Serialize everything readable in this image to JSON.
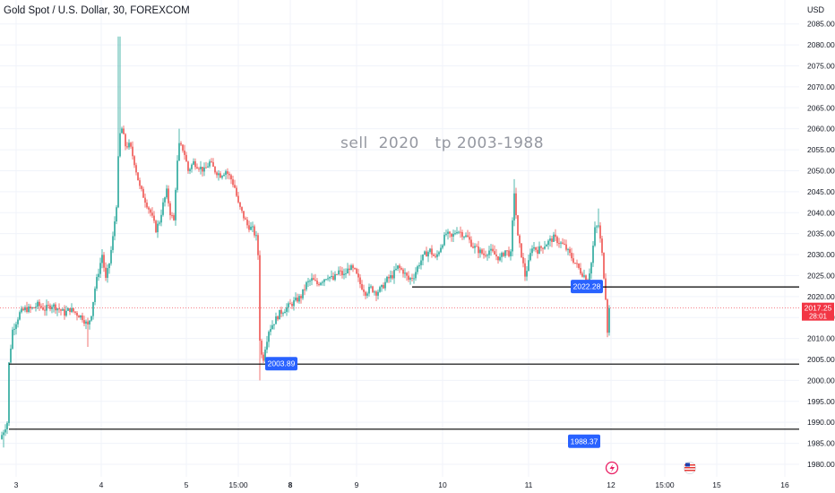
{
  "header": {
    "symbol_title": "Gold Spot / U.S. Dollar, 30, FOREXCOM",
    "currency": "USD"
  },
  "annotation": "sell  2020   tp 2003-1988",
  "colors": {
    "up": "#26a69a",
    "down": "#ef5350",
    "level_line": "#000000",
    "label_bg": "#2962ff",
    "last_price_bg": "#f23645",
    "grid": "#f0f3fa"
  },
  "chart_data": {
    "type": "candlestick",
    "title": "",
    "ylim": [
      1977,
      2089
    ],
    "y_ticks": [
      "1980.00",
      "1985.00",
      "1990.00",
      "1995.00",
      "2000.00",
      "2005.00",
      "2010.00",
      "2015.00",
      "2020.00",
      "2025.00",
      "2030.00",
      "2035.00",
      "2040.00",
      "2045.00",
      "2050.00",
      "2055.00",
      "2060.00",
      "2065.00",
      "2070.00",
      "2075.00",
      "2080.00",
      "2085.00"
    ],
    "x_ticks": [
      {
        "label": "3",
        "bold": false
      },
      {
        "label": "4",
        "bold": false
      },
      {
        "label": "5",
        "bold": false
      },
      {
        "label": "15:00",
        "bold": false
      },
      {
        "label": "8",
        "bold": true
      },
      {
        "label": "9",
        "bold": false
      },
      {
        "label": "10",
        "bold": false
      },
      {
        "label": "11",
        "bold": false
      },
      {
        "label": "12",
        "bold": false
      },
      {
        "label": "15:00",
        "bold": false
      },
      {
        "label": "15",
        "bold": false
      },
      {
        "label": "16",
        "bold": false
      }
    ],
    "horizontal_levels": [
      2022.28,
      2003.89,
      1988.37
    ],
    "level_labels": [
      "2022.28",
      "2003.89",
      "1988.37"
    ],
    "last_price": "2017.25",
    "countdown": "28:01",
    "price_path": [
      [
        0,
        1986
      ],
      [
        4,
        1988
      ],
      [
        8,
        1990
      ],
      [
        10,
        2004
      ],
      [
        14,
        2012
      ],
      [
        18,
        2014
      ],
      [
        22,
        2016
      ],
      [
        28,
        2017
      ],
      [
        35,
        2017
      ],
      [
        42,
        2018
      ],
      [
        50,
        2017
      ],
      [
        58,
        2018
      ],
      [
        66,
        2017
      ],
      [
        72,
        2016
      ],
      [
        78,
        2017
      ],
      [
        85,
        2016
      ],
      [
        92,
        2015
      ],
      [
        98,
        2013
      ],
      [
        102,
        2016
      ],
      [
        106,
        2022
      ],
      [
        110,
        2026
      ],
      [
        114,
        2030
      ],
      [
        118,
        2024
      ],
      [
        122,
        2028
      ],
      [
        126,
        2034
      ],
      [
        130,
        2042
      ],
      [
        133,
        2058
      ],
      [
        136,
        2060
      ],
      [
        140,
        2056
      ],
      [
        145,
        2056
      ],
      [
        150,
        2052
      ],
      [
        156,
        2046
      ],
      [
        162,
        2043
      ],
      [
        168,
        2040
      ],
      [
        174,
        2036
      ],
      [
        178,
        2038
      ],
      [
        182,
        2042
      ],
      [
        186,
        2045
      ],
      [
        190,
        2040
      ],
      [
        194,
        2038
      ],
      [
        197,
        2050
      ],
      [
        200,
        2056
      ],
      [
        205,
        2055
      ],
      [
        210,
        2050
      ],
      [
        216,
        2052
      ],
      [
        222,
        2051
      ],
      [
        228,
        2050
      ],
      [
        234,
        2052
      ],
      [
        240,
        2050
      ],
      [
        246,
        2049
      ],
      [
        252,
        2050
      ],
      [
        258,
        2048
      ],
      [
        262,
        2046
      ],
      [
        266,
        2042
      ],
      [
        270,
        2040
      ],
      [
        276,
        2037
      ],
      [
        282,
        2036
      ],
      [
        286,
        2034
      ],
      [
        288,
        2030
      ],
      [
        290,
        2010
      ],
      [
        293,
        2004
      ],
      [
        296,
        2008
      ],
      [
        300,
        2012
      ],
      [
        306,
        2014
      ],
      [
        312,
        2016
      ],
      [
        318,
        2017
      ],
      [
        324,
        2018
      ],
      [
        330,
        2019
      ],
      [
        336,
        2020
      ],
      [
        342,
        2023
      ],
      [
        348,
        2024
      ],
      [
        354,
        2023
      ],
      [
        360,
        2024
      ],
      [
        366,
        2025
      ],
      [
        372,
        2024
      ],
      [
        378,
        2026
      ],
      [
        384,
        2025
      ],
      [
        390,
        2027
      ],
      [
        396,
        2026
      ],
      [
        402,
        2023
      ],
      [
        408,
        2021
      ],
      [
        414,
        2022
      ],
      [
        420,
        2021
      ],
      [
        426,
        2022
      ],
      [
        432,
        2024
      ],
      [
        438,
        2025
      ],
      [
        444,
        2027
      ],
      [
        450,
        2026
      ],
      [
        456,
        2024
      ],
      [
        462,
        2025
      ],
      [
        468,
        2028
      ],
      [
        474,
        2030
      ],
      [
        480,
        2031
      ],
      [
        486,
        2029
      ],
      [
        492,
        2032
      ],
      [
        498,
        2035
      ],
      [
        504,
        2034
      ],
      [
        510,
        2036
      ],
      [
        516,
        2035
      ],
      [
        522,
        2034
      ],
      [
        528,
        2032
      ],
      [
        534,
        2031
      ],
      [
        540,
        2030
      ],
      [
        546,
        2031
      ],
      [
        552,
        2030
      ],
      [
        558,
        2029
      ],
      [
        564,
        2031
      ],
      [
        570,
        2030
      ],
      [
        574,
        2045
      ],
      [
        578,
        2034
      ],
      [
        582,
        2030
      ],
      [
        586,
        2025
      ],
      [
        590,
        2028
      ],
      [
        594,
        2032
      ],
      [
        600,
        2031
      ],
      [
        606,
        2032
      ],
      [
        612,
        2033
      ],
      [
        618,
        2034
      ],
      [
        624,
        2033
      ],
      [
        630,
        2032
      ],
      [
        636,
        2030
      ],
      [
        642,
        2028
      ],
      [
        648,
        2026
      ],
      [
        652,
        2025
      ],
      [
        656,
        2024
      ],
      [
        660,
        2028
      ],
      [
        664,
        2036
      ],
      [
        668,
        2037
      ],
      [
        672,
        2030
      ],
      [
        676,
        2020
      ],
      [
        678,
        2012
      ],
      [
        680,
        2017
      ]
    ]
  }
}
